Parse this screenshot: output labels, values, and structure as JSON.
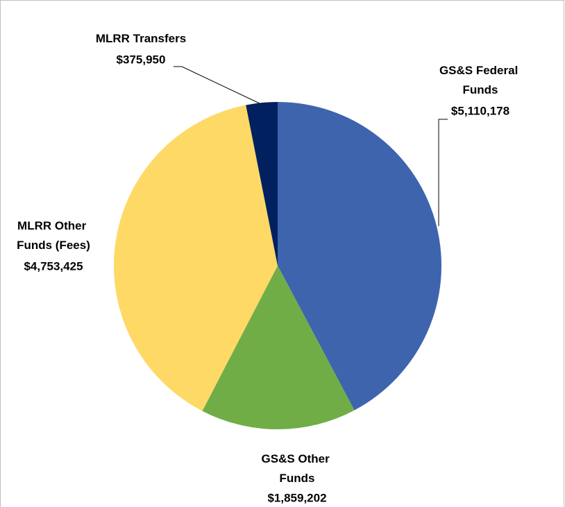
{
  "chart_data": {
    "type": "pie",
    "categories": [
      "GS&S Federal Funds",
      "GS&S Other Funds",
      "MLRR Other Funds (Fees)",
      "MLRR Transfers"
    ],
    "values": [
      5110178,
      1859202,
      4753425,
      375950
    ],
    "value_labels": [
      "$5,110,178",
      "$1,859,202",
      "$4,753,425",
      "$375,950"
    ],
    "colors": [
      "#3e64ad",
      "#70ad47",
      "#ffd966",
      "#002060"
    ]
  }
}
